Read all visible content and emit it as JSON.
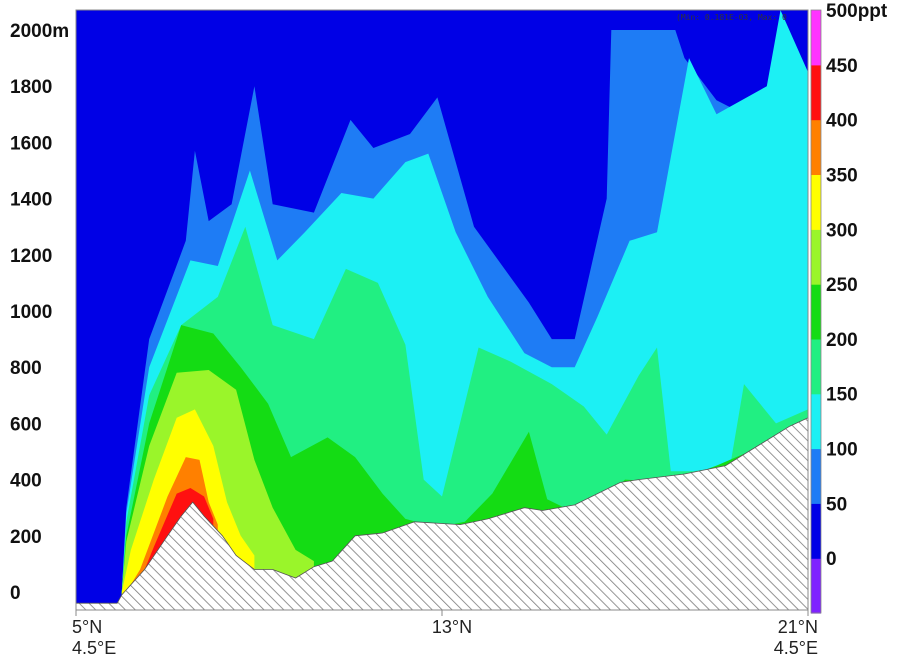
{
  "chart_data": {
    "type": "heatmap",
    "subtype": "vertical cross-section filled contour",
    "title": "",
    "xlabel": "",
    "ylabel": "",
    "y_ticks": [
      {
        "value": 0,
        "label": "0"
      },
      {
        "value": 200,
        "label": "200"
      },
      {
        "value": 400,
        "label": "400"
      },
      {
        "value": 600,
        "label": "600"
      },
      {
        "value": 800,
        "label": "800"
      },
      {
        "value": 1000,
        "label": "1000"
      },
      {
        "value": 1200,
        "label": "1200"
      },
      {
        "value": 1400,
        "label": "1400"
      },
      {
        "value": 1600,
        "label": "1600"
      },
      {
        "value": 1800,
        "label": "1800"
      },
      {
        "value": 2000,
        "label": "2000m"
      }
    ],
    "ylim": [
      0,
      2000
    ],
    "y_unit": "m",
    "x_ticks": [
      {
        "lat": 5,
        "line1": "5°N",
        "line2": "4.5°E"
      },
      {
        "lat": 13,
        "line1": "13°N",
        "line2": ""
      },
      {
        "lat": 21,
        "line1": "21°N",
        "line2": "4.5°E"
      }
    ],
    "xlim": [
      5,
      21
    ],
    "min_max_note": "(Min: 0.181E-03, Max: 0",
    "colorbar": {
      "unit": "ppt",
      "levels": [
        {
          "value": 0,
          "label": "0",
          "color": "#7f22ff"
        },
        {
          "value": 50,
          "label": "50",
          "color": "#0000e6"
        },
        {
          "value": 100,
          "label": "100",
          "color": "#1e7cf5"
        },
        {
          "value": 150,
          "label": "150",
          "color": "#1cf0f4"
        },
        {
          "value": 200,
          "label": "200",
          "color": "#21ef82"
        },
        {
          "value": 250,
          "label": "250",
          "color": "#14dc14"
        },
        {
          "value": 300,
          "label": "300",
          "color": "#9af52a"
        },
        {
          "value": 350,
          "label": "350",
          "color": "#ffff00"
        },
        {
          "value": 400,
          "label": "400",
          "color": "#ff8000"
        },
        {
          "value": 450,
          "label": "450",
          "color": "#ff1010"
        },
        {
          "value": 500,
          "label": "500ppt",
          "color": "#ff1e82"
        }
      ],
      "top_color": "#ff33ff"
    },
    "terrain": {
      "pattern": "hatched",
      "profile": [
        [
          5.0,
          -40
        ],
        [
          5.9,
          -40
        ],
        [
          6.0,
          -10
        ],
        [
          6.5,
          80
        ],
        [
          7.0,
          200
        ],
        [
          7.3,
          270
        ],
        [
          7.55,
          320
        ],
        [
          7.8,
          270
        ],
        [
          8.2,
          200
        ],
        [
          8.5,
          130
        ],
        [
          8.9,
          80
        ],
        [
          9.3,
          80
        ],
        [
          9.8,
          50
        ],
        [
          10.2,
          90
        ],
        [
          10.6,
          110
        ],
        [
          11.1,
          200
        ],
        [
          11.7,
          210
        ],
        [
          12.4,
          250
        ],
        [
          13.4,
          240
        ],
        [
          14.0,
          260
        ],
        [
          14.8,
          300
        ],
        [
          15.2,
          290
        ],
        [
          15.9,
          310
        ],
        [
          16.9,
          390
        ],
        [
          17.3,
          400
        ],
        [
          18.3,
          420
        ],
        [
          19.2,
          450
        ],
        [
          19.9,
          520
        ],
        [
          20.6,
          590
        ],
        [
          21.0,
          620
        ]
      ]
    },
    "fields": [
      {
        "level": 100,
        "boundary": [
          [
            6.0,
            0
          ],
          [
            6.1,
            300
          ],
          [
            6.6,
            900
          ],
          [
            7.4,
            1250
          ],
          [
            7.6,
            1570
          ],
          [
            7.9,
            1320
          ],
          [
            8.4,
            1380
          ],
          [
            8.9,
            1800
          ],
          [
            9.3,
            1380
          ],
          [
            10.2,
            1350
          ],
          [
            11.0,
            1680
          ],
          [
            11.5,
            1580
          ],
          [
            12.3,
            1630
          ],
          [
            12.9,
            1760
          ],
          [
            13.7,
            1300
          ],
          [
            14.9,
            1030
          ],
          [
            15.4,
            900
          ],
          [
            15.9,
            900
          ],
          [
            16.6,
            1400
          ],
          [
            16.7,
            2000
          ],
          [
            18.1,
            2000
          ],
          [
            18.3,
            1900
          ],
          [
            19.0,
            1750
          ],
          [
            19.6,
            1700
          ],
          [
            20.1,
            1800
          ],
          [
            20.7,
            1800
          ],
          [
            21.0,
            1700
          ]
        ]
      },
      {
        "level": 150,
        "boundary": [
          [
            6.0,
            0
          ],
          [
            6.1,
            280
          ],
          [
            6.6,
            800
          ],
          [
            7.5,
            1180
          ],
          [
            8.1,
            1160
          ],
          [
            8.8,
            1500
          ],
          [
            9.4,
            1180
          ],
          [
            10.0,
            1280
          ],
          [
            10.8,
            1420
          ],
          [
            11.5,
            1400
          ],
          [
            12.2,
            1530
          ],
          [
            12.7,
            1560
          ],
          [
            13.3,
            1280
          ],
          [
            14.0,
            1050
          ],
          [
            14.8,
            850
          ],
          [
            15.4,
            800
          ],
          [
            15.9,
            800
          ],
          [
            16.4,
            980
          ],
          [
            17.1,
            1250
          ],
          [
            17.7,
            1280
          ],
          [
            18.4,
            1900
          ],
          [
            19.0,
            1700
          ],
          [
            20.1,
            1800
          ],
          [
            20.4,
            2070
          ],
          [
            21.0,
            1850
          ]
        ]
      },
      {
        "level": 200,
        "boundary": [
          [
            6.0,
            0
          ],
          [
            6.1,
            250
          ],
          [
            6.6,
            700
          ],
          [
            7.3,
            950
          ],
          [
            8.1,
            1050
          ],
          [
            8.7,
            1300
          ],
          [
            9.3,
            950
          ],
          [
            10.2,
            900
          ],
          [
            10.9,
            1150
          ],
          [
            11.6,
            1100
          ],
          [
            12.2,
            880
          ],
          [
            12.6,
            400
          ],
          [
            13.0,
            340
          ],
          [
            13.8,
            870
          ],
          [
            14.5,
            820
          ],
          [
            15.4,
            740
          ],
          [
            16.1,
            660
          ],
          [
            16.6,
            560
          ],
          [
            17.3,
            770
          ],
          [
            17.7,
            870
          ],
          [
            18.0,
            430
          ],
          [
            18.5,
            430
          ],
          [
            19.3,
            450
          ],
          [
            19.6,
            740
          ],
          [
            20.3,
            600
          ],
          [
            21.0,
            650
          ]
        ]
      },
      {
        "level": 250,
        "boundary": [
          [
            6.0,
            0
          ],
          [
            6.1,
            200
          ],
          [
            6.6,
            600
          ],
          [
            7.3,
            950
          ],
          [
            8.0,
            920
          ],
          [
            8.6,
            800
          ],
          [
            9.2,
            670
          ],
          [
            9.7,
            480
          ],
          [
            10.5,
            550
          ],
          [
            11.1,
            480
          ],
          [
            11.7,
            350
          ],
          [
            12.2,
            260
          ],
          [
            12.9,
            230
          ],
          [
            13.5,
            250
          ],
          [
            14.1,
            350
          ],
          [
            14.9,
            570
          ],
          [
            15.3,
            330
          ],
          [
            15.8,
            290
          ],
          [
            16.3,
            290
          ],
          [
            17.0,
            400
          ],
          [
            18.0,
            390
          ],
          [
            19.0,
            450
          ],
          [
            20.0,
            520
          ],
          [
            21.0,
            620
          ]
        ]
      },
      {
        "level": 300,
        "boundary": [
          [
            6.0,
            0
          ],
          [
            6.1,
            180
          ],
          [
            6.6,
            520
          ],
          [
            7.2,
            780
          ],
          [
            7.9,
            790
          ],
          [
            8.5,
            720
          ],
          [
            8.9,
            470
          ],
          [
            9.3,
            300
          ],
          [
            9.8,
            150
          ],
          [
            10.2,
            110
          ]
        ]
      },
      {
        "level": 350,
        "boundary": [
          [
            6.0,
            0
          ],
          [
            6.2,
            150
          ],
          [
            6.7,
            400
          ],
          [
            7.2,
            620
          ],
          [
            7.6,
            650
          ],
          [
            8.0,
            520
          ],
          [
            8.3,
            320
          ],
          [
            8.6,
            200
          ],
          [
            8.9,
            130
          ]
        ]
      },
      {
        "level": 400,
        "boundary": [
          [
            6.1,
            0
          ],
          [
            6.4,
            80
          ],
          [
            7.0,
            340
          ],
          [
            7.4,
            480
          ],
          [
            7.7,
            470
          ],
          [
            7.9,
            320
          ],
          [
            8.1,
            240
          ]
        ]
      },
      {
        "level": 450,
        "boundary": [
          [
            6.3,
            0
          ],
          [
            6.7,
            160
          ],
          [
            7.2,
            350
          ],
          [
            7.5,
            370
          ],
          [
            7.8,
            340
          ],
          [
            8.0,
            260
          ]
        ]
      }
    ]
  }
}
